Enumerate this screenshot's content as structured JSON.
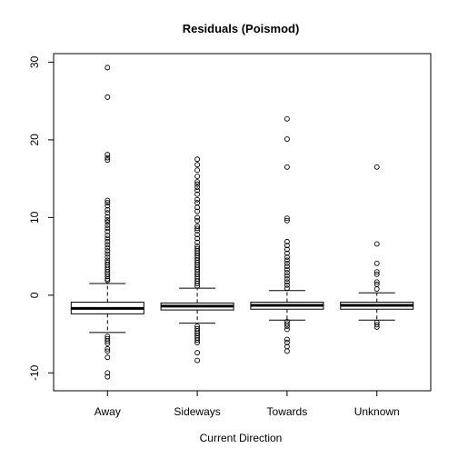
{
  "chart_data": {
    "type": "boxplot",
    "title": "Residuals (Poismod)",
    "xlabel": "Current Direction",
    "ylabel": "",
    "ylim": [
      -12.3,
      31.1
    ],
    "yticks": [
      -10,
      0,
      10,
      20,
      30
    ],
    "grid": false,
    "categories": [
      "Away",
      "Sideways",
      "Towards",
      "Unknown"
    ],
    "boxes": [
      {
        "name": "Away",
        "whisker_low": -4.8,
        "q1": -2.4,
        "median": -1.7,
        "q3": -0.9,
        "whisker_high": 1.5,
        "outliers": [
          29.3,
          25.5,
          18.1,
          17.7,
          17.4,
          12.2,
          11.9,
          11.5,
          11.0,
          10.6,
          10.1,
          9.7,
          9.4,
          9.0,
          8.6,
          8.2,
          7.7,
          7.3,
          6.9,
          6.5,
          6.1,
          5.7,
          5.3,
          4.9,
          4.5,
          4.2,
          3.9,
          3.6,
          3.3,
          3.0,
          2.7,
          2.4,
          2.1,
          1.9,
          -5.3,
          -5.6,
          -5.9,
          -6.2,
          -6.9,
          -7.2,
          -8.0,
          -10.0,
          -10.5
        ]
      },
      {
        "name": "Sideways",
        "whisker_low": -3.6,
        "q1": -1.9,
        "median": -1.4,
        "q3": -1.0,
        "whisker_high": 0.9,
        "outliers": [
          17.5,
          16.8,
          16.1,
          15.3,
          14.6,
          14.3,
          13.9,
          13.5,
          13.0,
          12.3,
          11.9,
          11.3,
          10.8,
          10.0,
          9.6,
          8.9,
          8.6,
          8.3,
          7.8,
          7.3,
          6.8,
          6.3,
          6.0,
          5.7,
          5.4,
          5.1,
          4.8,
          4.5,
          4.2,
          3.9,
          3.6,
          3.3,
          3.0,
          2.7,
          2.4,
          2.1,
          1.8,
          1.5,
          1.2,
          -4.0,
          -4.3,
          -4.6,
          -4.9,
          -5.2,
          -5.5,
          -5.8,
          -6.1,
          -7.4,
          -8.4
        ]
      },
      {
        "name": "Towards",
        "whisker_low": -3.2,
        "q1": -1.8,
        "median": -1.3,
        "q3": -0.9,
        "whisker_high": 0.6,
        "outliers": [
          22.7,
          20.1,
          16.5,
          9.9,
          9.6,
          6.9,
          6.4,
          5.9,
          5.4,
          4.9,
          4.5,
          4.1,
          3.7,
          3.3,
          2.9,
          2.5,
          2.1,
          1.7,
          1.3,
          0.9,
          -3.4,
          -3.7,
          -4.0,
          -4.4,
          -5.7,
          -6.1,
          -6.6,
          -7.2
        ]
      },
      {
        "name": "Unknown",
        "whisker_low": -3.2,
        "q1": -1.8,
        "median": -1.3,
        "q3": -0.9,
        "whisker_high": 0.3,
        "outliers": [
          16.5,
          6.6,
          4.1,
          3.0,
          2.7,
          1.7,
          1.4,
          0.8,
          -3.5,
          -3.8,
          -4.1
        ]
      }
    ]
  }
}
